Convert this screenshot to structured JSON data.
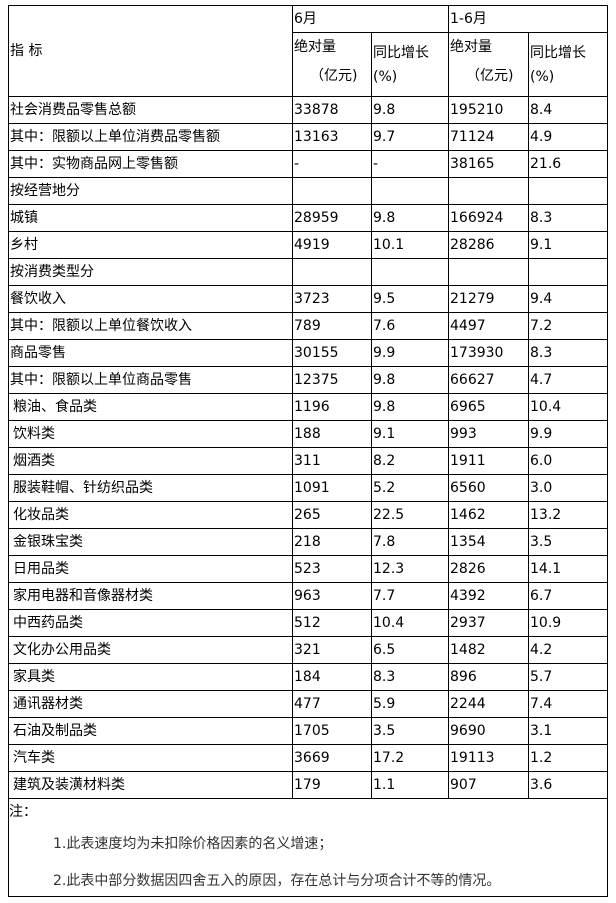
{
  "header": {
    "indicator": "指 标",
    "period_month": "6月",
    "period_ytd": "1-6月",
    "abs_label": "绝对量",
    "abs_unit": "（亿元)",
    "growth_label": "同比增长",
    "growth_unit": "(%)"
  },
  "rows": [
    {
      "name": "社会消费品零售总额",
      "m_abs": "33878",
      "m_g": "9.8",
      "y_abs": "195210",
      "y_g": "8.4"
    },
    {
      "name": "其中：限额以上单位消费品零售额",
      "m_abs": "13163",
      "m_g": "9.7",
      "y_abs": "71124",
      "y_g": "4.9"
    },
    {
      "name": "其中：实物商品网上零售额",
      "m_abs": "-",
      "m_g": "-",
      "y_abs": "38165",
      "y_g": "21.6"
    },
    {
      "name": "按经营地分",
      "m_abs": "",
      "m_g": "",
      "y_abs": "",
      "y_g": ""
    },
    {
      "name": "城镇",
      "m_abs": "28959",
      "m_g": "9.8",
      "y_abs": "166924",
      "y_g": "8.3"
    },
    {
      "name": "乡村",
      "m_abs": "4919",
      "m_g": "10.1",
      "y_abs": "28286",
      "y_g": "9.1"
    },
    {
      "name": "按消费类型分",
      "m_abs": "",
      "m_g": "",
      "y_abs": "",
      "y_g": ""
    },
    {
      "name": "餐饮收入",
      "m_abs": "3723",
      "m_g": "9.5",
      "y_abs": "21279",
      "y_g": "9.4"
    },
    {
      "name": "其中：限额以上单位餐饮收入",
      "m_abs": "789",
      "m_g": "7.6",
      "y_abs": "4497",
      "y_g": "7.2"
    },
    {
      "name": "商品零售",
      "m_abs": "30155",
      "m_g": "9.9",
      "y_abs": "173930",
      "y_g": "8.3"
    },
    {
      "name": "其中：限额以上单位商品零售",
      "m_abs": "12375",
      "m_g": "9.8",
      "y_abs": "66627",
      "y_g": "4.7"
    },
    {
      "name": "粮油、食品类",
      "m_abs": "1196",
      "m_g": "9.8",
      "y_abs": "6965",
      "y_g": "10.4",
      "indent": true
    },
    {
      "name": "饮料类",
      "m_abs": "188",
      "m_g": "9.1",
      "y_abs": "993",
      "y_g": "9.9",
      "indent": true
    },
    {
      "name": "烟酒类",
      "m_abs": "311",
      "m_g": "8.2",
      "y_abs": "1911",
      "y_g": "6.0",
      "indent": true
    },
    {
      "name": "服装鞋帽、针纺织品类",
      "m_abs": "1091",
      "m_g": "5.2",
      "y_abs": "6560",
      "y_g": "3.0",
      "indent": true
    },
    {
      "name": "化妆品类",
      "m_abs": "265",
      "m_g": "22.5",
      "y_abs": "1462",
      "y_g": "13.2",
      "indent": true
    },
    {
      "name": "金银珠宝类",
      "m_abs": "218",
      "m_g": "7.8",
      "y_abs": "1354",
      "y_g": "3.5",
      "indent": true
    },
    {
      "name": "日用品类",
      "m_abs": "523",
      "m_g": "12.3",
      "y_abs": "2826",
      "y_g": "14.1",
      "indent": true
    },
    {
      "name": "家用电器和音像器材类",
      "m_abs": "963",
      "m_g": "7.7",
      "y_abs": "4392",
      "y_g": "6.7",
      "indent": true
    },
    {
      "name": "中西药品类",
      "m_abs": "512",
      "m_g": "10.4",
      "y_abs": "2937",
      "y_g": "10.9",
      "indent": true
    },
    {
      "name": "文化办公用品类",
      "m_abs": "321",
      "m_g": "6.5",
      "y_abs": "1482",
      "y_g": "4.2",
      "indent": true
    },
    {
      "name": "家具类",
      "m_abs": "184",
      "m_g": "8.3",
      "y_abs": "896",
      "y_g": "5.7",
      "indent": true
    },
    {
      "name": "通讯器材类",
      "m_abs": "477",
      "m_g": "5.9",
      "y_abs": "2244",
      "y_g": "7.4",
      "indent": true
    },
    {
      "name": "石油及制品类",
      "m_abs": "1705",
      "m_g": "3.5",
      "y_abs": "9690",
      "y_g": "3.1",
      "indent": true
    },
    {
      "name": "汽车类",
      "m_abs": "3669",
      "m_g": "17.2",
      "y_abs": "19113",
      "y_g": "1.2",
      "indent": true
    },
    {
      "name": "建筑及装潢材料类",
      "m_abs": "179",
      "m_g": "1.1",
      "y_abs": "907",
      "y_g": "3.6",
      "indent": true
    }
  ],
  "notes": {
    "label": "注：",
    "items": [
      "1.此表速度均为未扣除价格因素的名义增速；",
      "2.此表中部分数据因四舍五入的原因，存在总计与分项合计不等的情况。"
    ]
  }
}
